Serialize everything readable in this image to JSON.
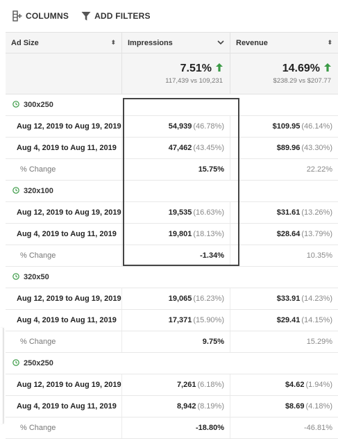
{
  "toolbar": {
    "columns_label": "COLUMNS",
    "filters_label": "ADD FILTERS"
  },
  "headers": {
    "ad_size": "Ad Size",
    "impressions": "Impressions",
    "revenue": "Revenue"
  },
  "summary": {
    "impressions_pct": "7.51%",
    "impressions_sub": "117,439 vs 109,231",
    "revenue_pct": "14.69%",
    "revenue_sub": "$238.29 vs $207.77",
    "up_color": "#3a9a45"
  },
  "groups": [
    {
      "name": "300x250",
      "rows": [
        {
          "label": "Aug 12, 2019 to Aug 19, 2019",
          "imp": "54,939",
          "imp_pct": "(46.78%)",
          "rev": "$109.95",
          "rev_pct": "(46.14%)"
        },
        {
          "label": "Aug 4, 2019 to Aug 11, 2019",
          "imp": "47,462",
          "imp_pct": "(43.45%)",
          "rev": "$89.96",
          "rev_pct": "(43.30%)"
        }
      ],
      "change": {
        "label": "% Change",
        "imp": "15.75%",
        "rev": "22.22%"
      }
    },
    {
      "name": "320x100",
      "rows": [
        {
          "label": "Aug 12, 2019 to Aug 19, 2019",
          "imp": "19,535",
          "imp_pct": "(16.63%)",
          "rev": "$31.61",
          "rev_pct": "(13.26%)"
        },
        {
          "label": "Aug 4, 2019 to Aug 11, 2019",
          "imp": "19,801",
          "imp_pct": "(18.13%)",
          "rev": "$28.64",
          "rev_pct": "(13.79%)"
        }
      ],
      "change": {
        "label": "% Change",
        "imp": "-1.34%",
        "rev": "10.35%"
      }
    },
    {
      "name": "320x50",
      "rows": [
        {
          "label": "Aug 12, 2019 to Aug 19, 2019",
          "imp": "19,065",
          "imp_pct": "(16.23%)",
          "rev": "$33.91",
          "rev_pct": "(14.23%)"
        },
        {
          "label": "Aug 4, 2019 to Aug 11, 2019",
          "imp": "17,371",
          "imp_pct": "(15.90%)",
          "rev": "$29.41",
          "rev_pct": "(14.15%)"
        }
      ],
      "change": {
        "label": "% Change",
        "imp": "9.75%",
        "rev": "15.29%"
      }
    },
    {
      "name": "250x250",
      "rows": [
        {
          "label": "Aug 12, 2019 to Aug 19, 2019",
          "imp": "7,261",
          "imp_pct": "(6.18%)",
          "rev": "$4.62",
          "rev_pct": "(1.94%)"
        },
        {
          "label": "Aug 4, 2019 to Aug 11, 2019",
          "imp": "8,942",
          "imp_pct": "(8.19%)",
          "rev": "$8.69",
          "rev_pct": "(4.18%)"
        }
      ],
      "change": {
        "label": "% Change",
        "imp": "-18.80%",
        "rev": "-46.81%"
      }
    }
  ]
}
